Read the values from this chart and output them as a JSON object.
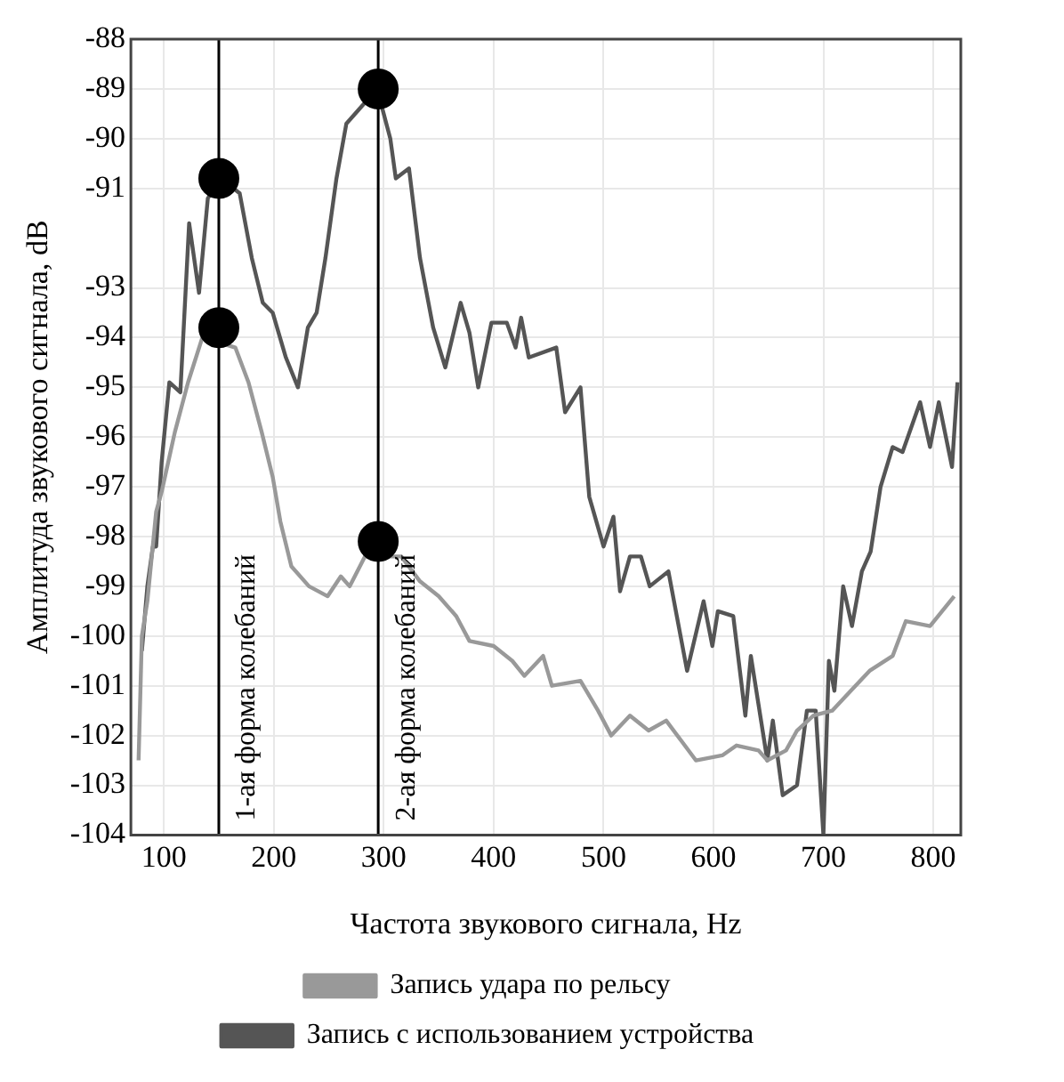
{
  "chart_data": {
    "type": "line",
    "xlabel": "Частота звукового сигнала, Hz",
    "ylabel": "Амплитуда звукового сигнала, dB",
    "xlim": [
      70,
      825
    ],
    "xticks": [
      100,
      200,
      300,
      400,
      500,
      600,
      700,
      800
    ],
    "ylim": [
      -104,
      -88
    ],
    "yticks": [
      -104,
      -103,
      -102,
      -101,
      -100,
      -99,
      -98,
      -97,
      -96,
      -95,
      -94,
      -93,
      -91,
      -90,
      -89,
      -88
    ],
    "grid": true,
    "legend": "bottom",
    "marker": "none",
    "line_style": "solid",
    "series": [
      {
        "name": "Запись удара по рельсу",
        "color": "#999999",
        "x": [
          77,
          80,
          85,
          93,
          98,
          110,
          122,
          135,
          165,
          177,
          189,
          199,
          206,
          216,
          232,
          249,
          261,
          269,
          283,
          316,
          333,
          350,
          366,
          378,
          400,
          417,
          428,
          445,
          453,
          479,
          495,
          507,
          524,
          541,
          557,
          584,
          608,
          621,
          641,
          649,
          666,
          676,
          691,
          708,
          725,
          742,
          763,
          775,
          797,
          819
        ],
        "values": [
          -102.5,
          -100,
          -99.3,
          -97.5,
          -97.1,
          -95.9,
          -94.9,
          -94,
          -94.2,
          -94.9,
          -95.9,
          -96.8,
          -97.7,
          -98.6,
          -99,
          -99.2,
          -98.8,
          -99,
          -98.4,
          -98.4,
          -98.9,
          -99.2,
          -99.6,
          -100.1,
          -100.2,
          -100.5,
          -100.8,
          -100.4,
          -101,
          -100.9,
          -101.5,
          -102,
          -101.6,
          -101.9,
          -101.7,
          -102.5,
          -102.4,
          -102.2,
          -102.3,
          -102.5,
          -102.3,
          -101.9,
          -101.6,
          -101.5,
          -101.1,
          -100.7,
          -100.4,
          -99.7,
          -99.8,
          -99.2
        ]
      },
      {
        "name": "Запись с использованием устройства",
        "color": "#555555",
        "x": [
          80,
          85,
          90,
          93,
          98,
          105,
          115,
          123,
          132,
          140,
          152,
          169,
          180,
          190,
          199,
          211,
          222,
          231,
          239,
          247,
          257,
          266,
          278,
          294,
          306,
          311,
          323,
          333,
          345,
          356,
          370,
          378,
          386,
          398,
          412,
          420,
          425,
          432,
          457,
          465,
          479,
          487,
          500,
          509,
          515,
          524,
          534,
          542,
          559,
          576,
          591,
          599,
          604,
          618,
          629,
          634,
          649,
          654,
          663,
          676,
          685,
          693,
          700,
          705,
          710,
          718,
          726,
          735,
          743,
          752,
          763,
          772,
          788,
          797,
          805,
          817,
          822
        ],
        "values": [
          -100.3,
          -99,
          -98.2,
          -98.2,
          -96.5,
          -94.9,
          -95.1,
          -91.7,
          -93.1,
          -91.2,
          -90.8,
          -91.1,
          -92.4,
          -93.3,
          -93.5,
          -94.4,
          -95,
          -93.8,
          -93.5,
          -92.4,
          -90.8,
          -89.7,
          -89.4,
          -89,
          -90,
          -90.8,
          -90.6,
          -92.4,
          -93.8,
          -94.6,
          -93.3,
          -93.9,
          -95,
          -93.7,
          -93.7,
          -94.2,
          -93.6,
          -94.4,
          -94.2,
          -95.5,
          -95,
          -97.2,
          -98.2,
          -97.6,
          -99.1,
          -98.4,
          -98.4,
          -99,
          -98.7,
          -100.7,
          -99.3,
          -100.2,
          -99.5,
          -99.6,
          -101.6,
          -100.4,
          -102.5,
          -101.7,
          -103.2,
          -103,
          -101.5,
          -101.5,
          -104,
          -100.5,
          -101.1,
          -99,
          -99.8,
          -98.7,
          -98.3,
          -97,
          -96.2,
          -96.3,
          -95.3,
          -96.2,
          -95.3,
          -96.6,
          -94.9
        ]
      },
      {
        "type": "scatter",
        "color": "#000000",
        "marker": "circle",
        "x": [
          150,
          150,
          295,
          295
        ],
        "values": [
          -90.8,
          -93.8,
          -89,
          -98.1
        ]
      }
    ],
    "ref_lines": [
      {
        "axis": "x",
        "value": 150,
        "label": "1-ая форма колебаний",
        "color": "#000000"
      },
      {
        "axis": "x",
        "value": 295,
        "label": "2-ая форма колебаний",
        "color": "#000000"
      }
    ]
  }
}
